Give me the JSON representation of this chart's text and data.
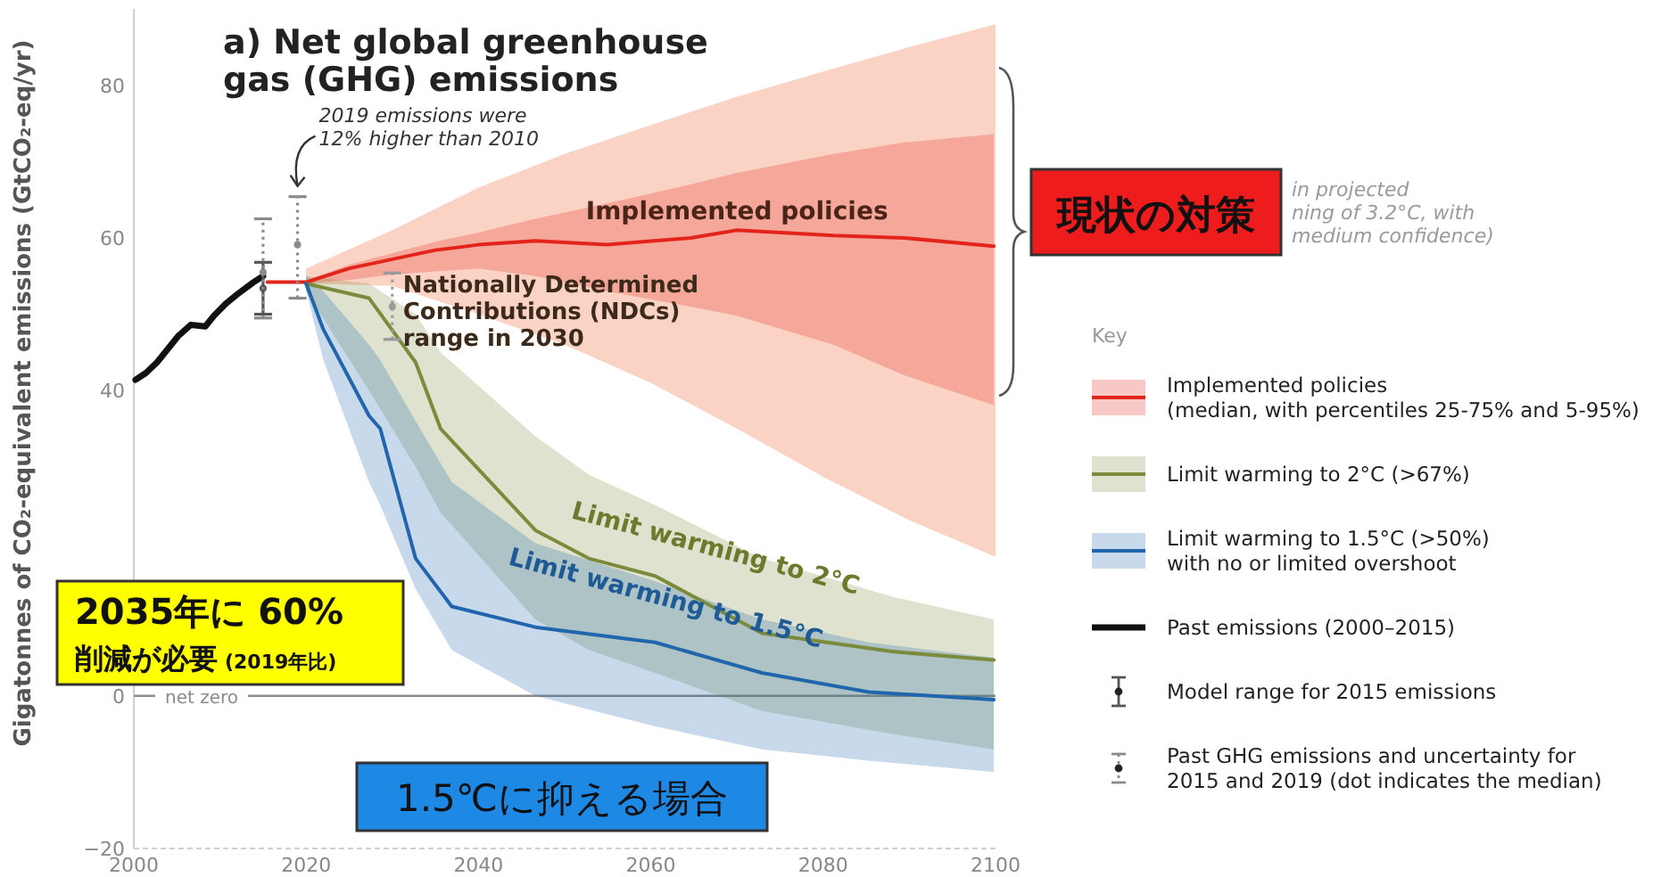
{
  "chart_data": {
    "type": "line",
    "title": "a) Net global greenhouse\ngas (GHG) emissions",
    "ylabel": "Gigatonnes of CO₂-equivalent emissions (GtCO₂-eq/yr)",
    "legend_title": "Key",
    "legend": "right",
    "grid": false,
    "xlim": [
      2000,
      2100
    ],
    "xticks": [
      2000,
      2020,
      2040,
      2060,
      2080,
      2100
    ],
    "ylim": [
      -20,
      90
    ],
    "yticks": [
      {
        "value": -20,
        "label": "−20"
      },
      0,
      40,
      60,
      80
    ],
    "ref_lines": [
      {
        "axis": "y",
        "value": 0,
        "label": "net zero",
        "color": "#8c8c8c"
      }
    ],
    "series": [
      {
        "type": "area",
        "color": "#fbd3c5",
        "x": [
          2020,
          2030,
          2040,
          2050,
          2060,
          2070,
          2080,
          2090,
          2100
        ],
        "values": [
          null,
          null,
          null,
          null,
          null,
          null,
          null,
          null,
          null
        ],
        "lower": [
          54,
          53.7,
          50,
          46,
          41,
          35,
          28.7,
          23,
          18.2
        ],
        "upper": [
          56,
          61,
          66.6,
          71,
          74.8,
          78.5,
          81.8,
          85,
          88
        ]
      },
      {
        "type": "line",
        "name": "Implemented policies\n(median, with percentiles 25-75% and 5-95%)",
        "color": "#e3241b",
        "x": [
          2015.5,
          2020,
          2025,
          2030,
          2035,
          2040,
          2046.6,
          2054.9,
          2064.6,
          2070,
          2081.2,
          2089.4,
          2099.8
        ],
        "values": [
          54.2,
          54.2,
          56,
          57.2,
          58.4,
          59.1,
          59.6,
          59.1,
          60,
          61,
          60.3,
          60,
          58.9
        ],
        "lower": [
          null,
          54,
          54.5,
          55.2,
          55.6,
          56,
          55,
          53,
          51,
          49.8,
          46,
          42,
          38.1
        ],
        "upper": [
          null,
          54.4,
          56.5,
          58,
          59.5,
          60.7,
          62.5,
          64.5,
          67,
          68.5,
          71,
          72.5,
          73.6
        ]
      },
      {
        "type": "line",
        "name": "Limit warming to 2°C (>67%)",
        "color": "#7b8b3b",
        "x": [
          2020,
          2027.3,
          2032.7,
          2035.6,
          2046.6,
          2052.8,
          2060.5,
          2072.9,
          2088,
          2099.8
        ],
        "values": [
          54,
          52.1,
          43.7,
          35,
          21.7,
          18,
          15.7,
          8.2,
          5.8,
          4.7
        ],
        "lower": [
          53,
          40,
          30,
          24,
          10,
          6,
          3,
          -2,
          -5,
          -7
        ],
        "upper": [
          55,
          54,
          50,
          45,
          34,
          29,
          25,
          18,
          13,
          10
        ]
      },
      {
        "type": "line",
        "name": "Limit warming to 1.5°C (>50%)\nwith no or limited overshoot",
        "color": "#2166ac",
        "x": [
          2020,
          2022,
          2027.3,
          2028.6,
          2032.7,
          2036.9,
          2046.6,
          2060.5,
          2072.9,
          2085.3,
          2099.8
        ],
        "values": [
          54,
          48,
          36.7,
          35,
          18,
          11.7,
          9,
          7,
          3,
          0.5,
          -0.5
        ],
        "lower": [
          53,
          44,
          28,
          25,
          14,
          6,
          0,
          -4,
          -7,
          -8.5,
          -10
        ],
        "upper": [
          55,
          53,
          46,
          44,
          36,
          28,
          20,
          15,
          10,
          7,
          5
        ]
      },
      {
        "type": "line",
        "name": "Past emissions (2000–2015)",
        "color": "#111111",
        "x": [
          2000.2,
          2001.4,
          2002.7,
          2005.2,
          2006.6,
          2008.3,
          2009.3,
          2010.7,
          2012,
          2013.9,
          2015
        ],
        "values": [
          41.4,
          42.3,
          43.7,
          47.2,
          48.6,
          48.4,
          49.8,
          51.4,
          52.6,
          54.2,
          55
        ]
      },
      {
        "type": "scatter",
        "marker": "circle",
        "name": "Model range for 2015 emissions",
        "color": "#555555",
        "x": [
          2015
        ],
        "values": [
          53.4
        ],
        "errors": [
          [
            50,
            56.8
          ]
        ]
      },
      {
        "type": "scatter",
        "marker": "circle",
        "line_style": "dotted",
        "name": "Past GHG emissions and uncertainty for\n2015 and 2019 (dot indicates the median)",
        "color": "#8a8a8a",
        "x": [
          2015,
          2019
        ],
        "values": [
          55.5,
          59.1
        ],
        "errors": [
          [
            49.5,
            62.5
          ],
          [
            52.1,
            65.4
          ]
        ]
      },
      {
        "type": "scatter",
        "marker": "circle",
        "line_style": "dotted",
        "color": "#9a9a9a",
        "x": [
          2030
        ],
        "values": [
          51
        ],
        "errors": [
          [
            46.7,
            55.4
          ]
        ]
      }
    ],
    "annotations": [
      "現状の対策",
      "2035年に 60%",
      "削減が必要",
      "(2019年比)",
      "1.5℃に抑える場合",
      "in projected\nning of 3.2°C, with\nmedium confidence)",
      "Limit warming to 2°C",
      "Limit warming to 1.5°C",
      {
        "text": "2019 emissions were\n12% higher than 2010",
        "x": 2019,
        "y": 65.4
      },
      {
        "text": "Implemented policies",
        "x": 2070,
        "y": 61
      },
      {
        "text": "Nationally Determined\nContributions (NDCs)\nrange in 2030",
        "x": 2030,
        "y": 55.4
      }
    ]
  }
}
